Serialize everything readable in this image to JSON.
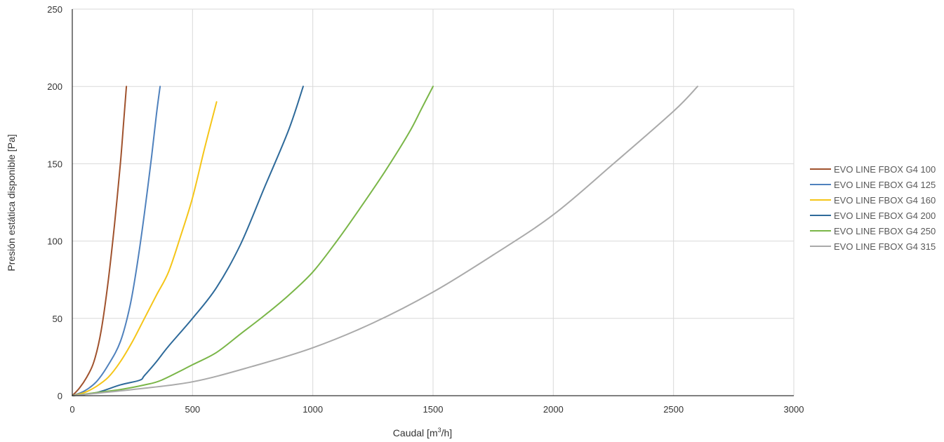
{
  "chart_data": {
    "type": "line",
    "xlabel_prefix": "Caudal [m",
    "xlabel_sup": "3",
    "xlabel_suffix": "/h]",
    "ylabel": "Presión estática disponible [Pa]",
    "xlim": [
      0,
      3000
    ],
    "ylim": [
      0,
      250
    ],
    "xticks": [
      "0",
      "500",
      "1000",
      "1500",
      "2000",
      "2500",
      "3000"
    ],
    "yticks": [
      "0",
      "50",
      "100",
      "150",
      "200",
      "250"
    ],
    "xtick_values": [
      0,
      500,
      1000,
      1500,
      2000,
      2500,
      3000
    ],
    "ytick_values": [
      0,
      50,
      100,
      150,
      200,
      250
    ],
    "grid": "vertical and horizontal",
    "legend_position": "right",
    "series": [
      {
        "name": "EVO LINE FBOX G4 100",
        "color": "#a0522d",
        "x": [
          0,
          30,
          60,
          90,
          120,
          150,
          175,
          200,
          215,
          225
        ],
        "y": [
          0,
          5,
          12,
          22,
          42,
          75,
          110,
          150,
          180,
          200
        ]
      },
      {
        "name": "EVO LINE FBOX G4 125",
        "color": "#4f81bd",
        "x": [
          0,
          50,
          100,
          150,
          200,
          240,
          270,
          300,
          330,
          350,
          365
        ],
        "y": [
          0,
          3,
          9,
          20,
          35,
          58,
          85,
          118,
          155,
          182,
          200
        ]
      },
      {
        "name": "EVO LINE FBOX G4 160",
        "color": "#f5c518",
        "x": [
          0,
          50,
          100,
          150,
          200,
          250,
          300,
          350,
          400,
          450,
          500,
          550,
          600
        ],
        "y": [
          0,
          2,
          6,
          12,
          22,
          35,
          50,
          65,
          80,
          103,
          128,
          160,
          190
        ]
      },
      {
        "name": "EVO LINE FBOX G4 200",
        "color": "#2e6a9a",
        "x": [
          0,
          100,
          200,
          280,
          300,
          350,
          400,
          500,
          600,
          700,
          800,
          900,
          960
        ],
        "y": [
          0,
          2,
          7,
          10,
          13,
          22,
          32,
          50,
          70,
          98,
          135,
          172,
          200
        ]
      },
      {
        "name": "EVO LINE FBOX G4 250",
        "color": "#7ab648",
        "x": [
          0,
          100,
          200,
          300,
          370,
          500,
          600,
          700,
          800,
          900,
          1000,
          1100,
          1200,
          1300,
          1400,
          1450,
          1500
        ],
        "y": [
          0,
          2,
          4,
          7,
          10,
          20,
          28,
          40,
          52,
          65,
          80,
          100,
          122,
          145,
          170,
          185,
          200
        ]
      },
      {
        "name": "EVO LINE FBOX G4 315",
        "color": "#aaaaaa",
        "x": [
          0,
          250,
          500,
          750,
          1000,
          1250,
          1500,
          1750,
          2000,
          2250,
          2500,
          2600
        ],
        "y": [
          0,
          4,
          9,
          19,
          31,
          47,
          67,
          91,
          117,
          150,
          184,
          200
        ]
      }
    ]
  }
}
